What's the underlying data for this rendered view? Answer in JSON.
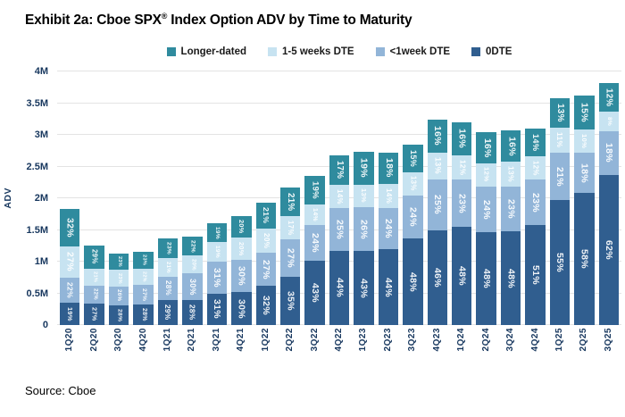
{
  "title": {
    "prefix": "Exhibit 2a: Cboe SPX",
    "reg": "®",
    "suffix": " Index Option ADV by Time to Maturity"
  },
  "source": "Source: Cboe",
  "chart_data": {
    "type": "bar",
    "stacked": true,
    "title": "Exhibit 2a: Cboe SPX® Index Option ADV by Time to Maturity",
    "xlabel": "",
    "ylabel": "ADV",
    "ylim": [
      0,
      4
    ],
    "ylim_unit": "millions",
    "yticks": [
      "0",
      "0.5M",
      "1M",
      "1.5M",
      "2M",
      "2.5M",
      "3M",
      "3.5M",
      "4M"
    ],
    "grid": "horizontal",
    "legend_position": "top-center",
    "legend_order": [
      "Longer-dated",
      "1-5 weeks DTE",
      "<1week DTE",
      "0DTE"
    ],
    "categories": [
      "1Q20",
      "2Q20",
      "3Q20",
      "4Q20",
      "1Q21",
      "2Q21",
      "3Q21",
      "4Q21",
      "1Q22",
      "2Q22",
      "3Q22",
      "4Q22",
      "1Q23",
      "2Q23",
      "3Q23",
      "4Q23",
      "1Q24",
      "2Q24",
      "3Q24",
      "4Q24",
      "1Q25",
      "2Q25",
      "3Q25"
    ],
    "totals_millions": [
      1.83,
      1.26,
      1.13,
      1.16,
      1.36,
      1.4,
      1.61,
      1.72,
      1.93,
      2.17,
      2.35,
      2.67,
      2.73,
      2.72,
      2.84,
      3.24,
      3.2,
      3.04,
      3.07,
      3.1,
      3.58,
      3.62,
      3.82
    ],
    "value_labels_unit": "percent of total ADV",
    "series": [
      {
        "name": "0DTE",
        "color": "#305E8F",
        "values": [
          19,
          27,
          28,
          28,
          29,
          28,
          31,
          30,
          32,
          35,
          43,
          44,
          43,
          44,
          48,
          46,
          48,
          48,
          48,
          51,
          55,
          58,
          62
        ]
      },
      {
        "name": "<1week DTE",
        "color": "#92B5D8",
        "values": [
          22,
          22,
          26,
          27,
          28,
          30,
          31,
          30,
          27,
          27,
          24,
          25,
          26,
          24,
          24,
          25,
          23,
          24,
          23,
          23,
          21,
          18,
          18
        ]
      },
      {
        "name": "1-5 weeks DTE",
        "color": "#C7E3F1",
        "values": [
          27,
          21,
          23,
          22,
          21,
          20,
          19,
          20,
          20,
          17,
          14,
          14,
          13,
          14,
          13,
          13,
          12,
          12,
          13,
          12,
          11,
          10,
          8
        ]
      },
      {
        "name": "Longer-dated",
        "color": "#2F8B9E",
        "values": [
          32,
          29,
          23,
          23,
          23,
          22,
          19,
          20,
          21,
          21,
          19,
          17,
          19,
          18,
          15,
          16,
          16,
          16,
          16,
          14,
          13,
          15,
          12
        ]
      }
    ]
  }
}
